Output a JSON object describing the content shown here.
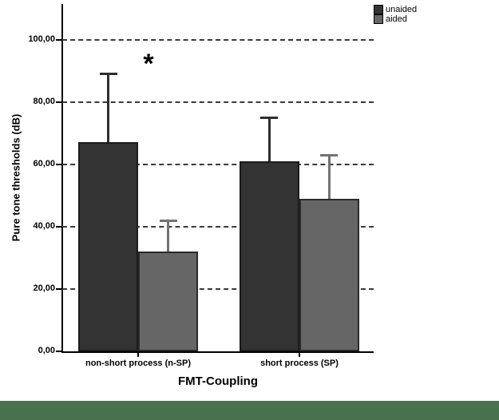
{
  "figure": {
    "background": "#ffffff",
    "footer_bar_color": "#48724e"
  },
  "legend": {
    "items": [
      {
        "label": "unaided",
        "color": "#333333"
      },
      {
        "label": "aided",
        "color": "#666666"
      }
    ]
  },
  "chart_data": {
    "type": "bar",
    "title": "",
    "xlabel": "FMT-Coupling",
    "ylabel": "Pure tone thresholds (dB)",
    "categories": [
      "non-short process (n-SP)",
      "short process (SP)"
    ],
    "series": [
      {
        "name": "unaided",
        "color": "#333333",
        "border_color": "#1c1c1c",
        "error_color": "#2e2e2e",
        "values": [
          67,
          61
        ],
        "error_upper": [
          89,
          75
        ]
      },
      {
        "name": "aided",
        "color": "#666666",
        "border_color": "#2a2a2a",
        "error_color": "#737373",
        "values": [
          32,
          49
        ],
        "error_upper": [
          42,
          63
        ]
      }
    ],
    "ylim": [
      0,
      111.5
    ],
    "yticks": [
      0,
      20,
      40,
      60,
      80,
      100
    ],
    "ytick_labels": [
      "0,00",
      "20,00",
      "40,00",
      "60,00",
      "80,00",
      "100,00"
    ],
    "grid": "horizontal-dashed",
    "legend_position": "top-right",
    "annotations": [
      {
        "text": "*",
        "category_index": 0,
        "meaning": "significance marker"
      }
    ]
  }
}
